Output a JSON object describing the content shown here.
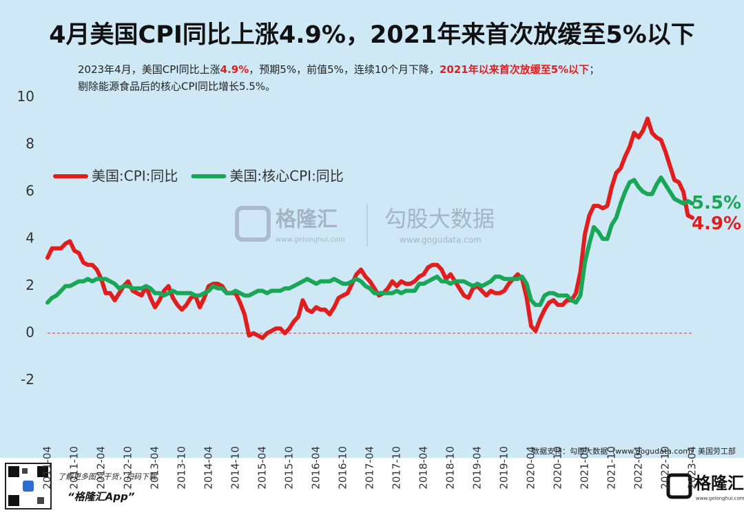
{
  "chart_data": {
    "type": "line",
    "title": "4月美国CPI同比上涨4.9%，2021年来首次放缓至5%以下",
    "subtitle": [
      [
        "2023年4月，美国CPI同比上涨",
        "4.9%",
        "，预期5%，前值5%，连续10个月下降，",
        "2021年以来首次放缓至5%以下",
        "；"
      ],
      [
        "剔除能源食品后的核心CPI同比增长5.5%。"
      ]
    ],
    "categories": [
      "2011-04",
      null,
      null,
      null,
      null,
      null,
      "2011-10",
      null,
      null,
      null,
      null,
      null,
      "2012-04",
      null,
      null,
      null,
      null,
      null,
      "2012-10",
      null,
      null,
      null,
      null,
      null,
      "2013-04",
      null,
      null,
      null,
      null,
      null,
      "2013-10",
      null,
      null,
      null,
      null,
      null,
      "2014-04",
      null,
      null,
      null,
      null,
      null,
      "2014-10",
      null,
      null,
      null,
      null,
      null,
      "2015-04",
      null,
      null,
      null,
      null,
      null,
      "2015-10",
      null,
      null,
      null,
      null,
      null,
      "2016-04",
      null,
      null,
      null,
      null,
      null,
      "2016-10",
      null,
      null,
      null,
      null,
      null,
      "2017-04",
      null,
      null,
      null,
      null,
      null,
      "2017-10",
      null,
      null,
      null,
      null,
      null,
      "2018-04",
      null,
      null,
      null,
      null,
      null,
      "2018-10",
      null,
      null,
      null,
      null,
      null,
      "2019-04",
      null,
      null,
      null,
      null,
      null,
      "2019-10",
      null,
      null,
      null,
      null,
      null,
      "2020-04",
      null,
      null,
      null,
      null,
      null,
      "2020-10",
      null,
      null,
      null,
      null,
      null,
      "2021-04",
      null,
      null,
      null,
      null,
      null,
      "2021-10",
      null,
      null,
      null,
      null,
      null,
      "2022-04",
      null,
      null,
      null,
      null,
      null,
      "2022-10",
      null,
      null,
      null,
      null,
      null,
      "2023-04"
    ],
    "series": [
      {
        "name": "美国:CPI:同比",
        "color": "#e01e1e",
        "end_label": "4.9%",
        "values": [
          3.2,
          3.6,
          3.6,
          3.6,
          3.8,
          3.9,
          3.5,
          3.4,
          3.0,
          2.9,
          2.9,
          2.7,
          2.3,
          1.7,
          1.7,
          1.4,
          1.7,
          2.0,
          2.2,
          1.8,
          1.7,
          1.6,
          2.0,
          1.5,
          1.1,
          1.4,
          1.8,
          2.0,
          1.5,
          1.2,
          1.0,
          1.2,
          1.5,
          1.6,
          1.1,
          1.5,
          2.0,
          2.1,
          2.1,
          2.0,
          1.7,
          1.7,
          1.7,
          1.3,
          0.8,
          -0.1,
          0.0,
          -0.1,
          -0.2,
          0.0,
          0.1,
          0.2,
          0.2,
          0.0,
          0.2,
          0.5,
          0.7,
          1.4,
          1.0,
          0.9,
          1.1,
          1.0,
          1.0,
          0.8,
          1.1,
          1.5,
          1.6,
          1.7,
          2.1,
          2.5,
          2.7,
          2.4,
          2.2,
          1.9,
          1.6,
          1.7,
          1.9,
          2.2,
          2.0,
          2.2,
          2.1,
          2.1,
          2.2,
          2.4,
          2.5,
          2.8,
          2.9,
          2.9,
          2.7,
          2.3,
          2.5,
          2.2,
          1.9,
          1.6,
          1.5,
          1.9,
          2.0,
          1.8,
          1.6,
          1.8,
          1.7,
          1.7,
          1.8,
          2.1,
          2.3,
          2.5,
          2.3,
          1.5,
          0.3,
          0.1,
          0.6,
          1.0,
          1.3,
          1.4,
          1.2,
          1.2,
          1.4,
          1.4,
          1.7,
          2.6,
          4.2,
          5.0,
          5.4,
          5.4,
          5.3,
          5.4,
          6.2,
          6.8,
          7.0,
          7.5,
          7.9,
          8.5,
          8.3,
          8.6,
          9.1,
          8.5,
          8.3,
          8.2,
          7.7,
          7.1,
          6.5,
          6.4,
          6.0,
          5.0,
          4.9
        ]
      },
      {
        "name": "美国:核心CPI:同比",
        "color": "#1aa657",
        "end_label": "5.5%",
        "values": [
          1.3,
          1.5,
          1.6,
          1.8,
          2.0,
          2.0,
          2.1,
          2.2,
          2.2,
          2.3,
          2.2,
          2.3,
          2.3,
          2.3,
          2.2,
          2.1,
          1.9,
          2.0,
          2.0,
          1.9,
          1.9,
          1.9,
          2.0,
          1.9,
          1.7,
          1.7,
          1.6,
          1.7,
          1.8,
          1.7,
          1.7,
          1.7,
          1.7,
          1.6,
          1.6,
          1.7,
          1.8,
          2.0,
          1.9,
          1.9,
          1.7,
          1.7,
          1.8,
          1.7,
          1.6,
          1.6,
          1.7,
          1.8,
          1.8,
          1.7,
          1.8,
          1.8,
          1.8,
          1.9,
          1.9,
          2.0,
          2.1,
          2.2,
          2.3,
          2.2,
          2.1,
          2.2,
          2.2,
          2.2,
          2.3,
          2.2,
          2.1,
          2.1,
          2.2,
          2.3,
          2.2,
          2.0,
          1.9,
          1.7,
          1.7,
          1.7,
          1.7,
          1.7,
          1.8,
          1.7,
          1.8,
          1.8,
          1.8,
          2.1,
          2.1,
          2.2,
          2.3,
          2.4,
          2.2,
          2.2,
          2.1,
          2.2,
          2.2,
          2.2,
          2.1,
          2.0,
          2.1,
          2.0,
          2.1,
          2.2,
          2.4,
          2.4,
          2.3,
          2.3,
          2.3,
          2.3,
          2.4,
          2.1,
          1.4,
          1.2,
          1.2,
          1.6,
          1.7,
          1.7,
          1.6,
          1.6,
          1.6,
          1.4,
          1.3,
          1.6,
          3.0,
          3.8,
          4.5,
          4.3,
          4.0,
          4.0,
          4.6,
          4.9,
          5.5,
          6.0,
          6.4,
          6.5,
          6.2,
          6.0,
          5.9,
          5.9,
          6.3,
          6.6,
          6.3,
          6.0,
          5.7,
          5.6,
          5.5,
          5.6,
          5.5
        ]
      }
    ],
    "ylim": [
      -2,
      10
    ],
    "yticks": [
      -2,
      0,
      2,
      4,
      6,
      8,
      10
    ],
    "reference_line": {
      "value": 0,
      "color": "#e03030"
    },
    "legend": "upper left",
    "source": "数据支持：勾股大数据（www.gogudata.com）美国劳工部",
    "watermark": {
      "brand": "格隆汇",
      "brand_url": "www.gelonghui.com",
      "data_brand": "勾股大数据",
      "data_url": "www.gogudata.com"
    }
  },
  "footer": {
    "qr_caption": "了解更多图文干货，扫码下载",
    "app_name": "“格隆汇App”",
    "logo": "格隆汇",
    "logo_url": "www.gelonghui.com"
  }
}
